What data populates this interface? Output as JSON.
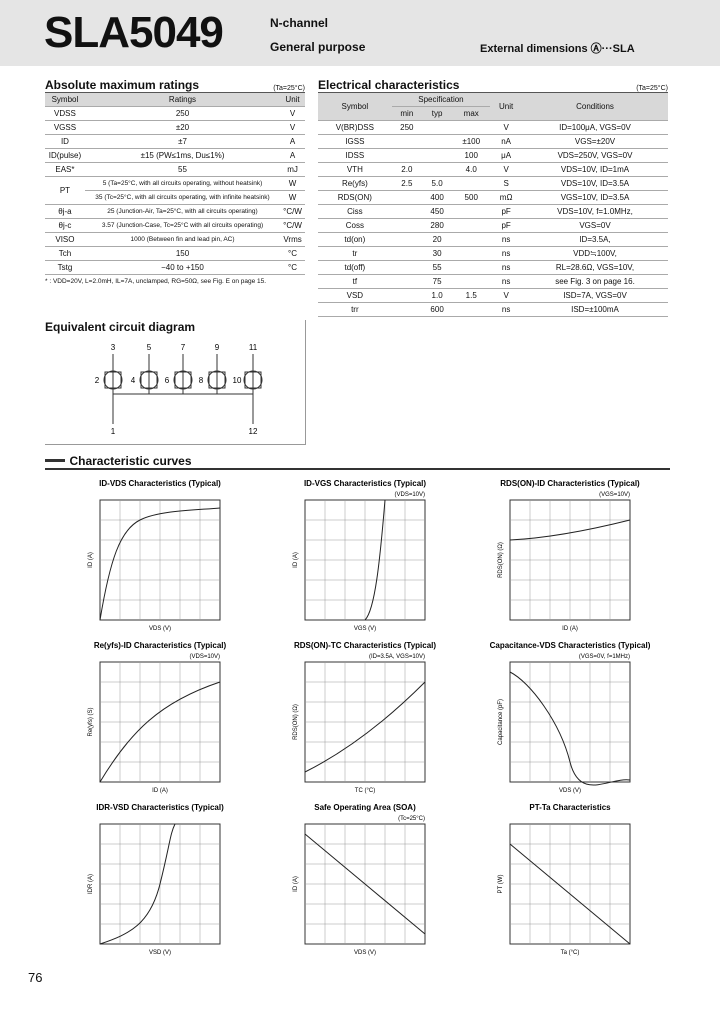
{
  "header": {
    "part": "SLA5049",
    "line1": "N-channel",
    "line2": "General purpose",
    "external": "External dimensions Ⓐ···SLA"
  },
  "abs_max": {
    "title": "Absolute maximum ratings",
    "condition": "(Ta=25°C)",
    "headers": [
      "Symbol",
      "Ratings",
      "Unit"
    ],
    "rows": [
      [
        "VDSS",
        "250",
        "V"
      ],
      [
        "VGSS",
        "±20",
        "V"
      ],
      [
        "ID",
        "±7",
        "A"
      ],
      [
        "ID(pulse)",
        "±15 (PW≤1ms, Du≤1%)",
        "A"
      ],
      [
        "EAS*",
        "55",
        "mJ"
      ],
      [
        "PT",
        "5 (Ta=25°C, with all circuits operating, without heatsink)",
        "W"
      ],
      [
        "35 (Tc=25°C, with all circuits operating, with infinite heatsink)",
        "W"
      ],
      [
        "θj-a",
        "25 (Junction-Air, Ta=25°C, with all circuits operating)",
        "°C/W"
      ],
      [
        "θj-c",
        "3.57 (Junction-Case, Tc=25°C with all circuits operating)",
        "°C/W"
      ],
      [
        "VISO",
        "1000 (Between fin and lead pin, AC)",
        "Vrms"
      ],
      [
        "Tch",
        "150",
        "°C"
      ],
      [
        "Tstg",
        "−40 to +150",
        "°C"
      ]
    ],
    "footnote": "* : VDD=20V, L=2.0mH, IL=7A, unclamped, RG=50Ω, see Fig. E on page 15."
  },
  "elec": {
    "title": "Electrical characteristics",
    "condition": "(Ta=25°C)",
    "headers": {
      "symbol": "Symbol",
      "spec": "Specification",
      "min": "min",
      "typ": "typ",
      "max": "max",
      "unit": "Unit",
      "conditions": "Conditions"
    },
    "rows": [
      {
        "symbol": "V(BR)DSS",
        "min": "250",
        "unit": "V",
        "conditions": "ID=100μA, VGS=0V"
      },
      {
        "symbol": "IGSS",
        "max": "±100",
        "unit": "nA",
        "conditions": "VGS=±20V"
      },
      {
        "symbol": "IDSS",
        "max": "100",
        "unit": "μA",
        "conditions": "VDS=250V, VGS=0V"
      },
      {
        "symbol": "VTH",
        "min": "2.0",
        "max": "4.0",
        "unit": "V",
        "conditions": "VDS=10V, ID=1mA"
      },
      {
        "symbol": "Re(yfs)",
        "min": "2.5",
        "typ": "5.0",
        "unit": "S",
        "conditions": "VDS=10V, ID=3.5A"
      },
      {
        "symbol": "RDS(ON)",
        "typ": "400",
        "max": "500",
        "unit": "mΩ",
        "conditions": "VGS=10V, ID=3.5A"
      },
      {
        "symbol": "Ciss",
        "typ": "450",
        "unit": "pF",
        "conditions": "VDS=10V, f=1.0MHz,"
      },
      {
        "symbol": "Coss",
        "typ": "280",
        "unit": "pF",
        "conditions": "VGS=0V"
      },
      {
        "symbol": "td(on)",
        "typ": "20",
        "unit": "ns",
        "conditions": "ID=3.5A,"
      },
      {
        "symbol": "tr",
        "typ": "30",
        "unit": "ns",
        "conditions": "VDD≒100V,"
      },
      {
        "symbol": "td(off)",
        "typ": "55",
        "unit": "ns",
        "conditions": "RL=28.6Ω, VGS=10V,"
      },
      {
        "symbol": "tf",
        "typ": "75",
        "unit": "ns",
        "conditions": "see Fig. 3 on page 16."
      },
      {
        "symbol": "VSD",
        "typ": "1.0",
        "max": "1.5",
        "unit": "V",
        "conditions": "ISD=7A, VGS=0V"
      },
      {
        "symbol": "trr",
        "typ": "600",
        "unit": "ns",
        "conditions": "ISD=±100mA"
      }
    ]
  },
  "circuit": {
    "title": "Equivalent circuit diagram",
    "top_pins": [
      "3",
      "5",
      "7",
      "9",
      "11"
    ],
    "gate_pins": [
      "2",
      "4",
      "6",
      "8",
      "10"
    ],
    "bottom_pins": [
      "1",
      "12"
    ]
  },
  "curves": {
    "title": "Characteristic curves",
    "panels": [
      {
        "title": "ID-VDS Characteristics (Typical)",
        "x_label": "VDS (V)",
        "y_label": "ID (A)"
      },
      {
        "title": "ID-VGS Characteristics (Typical)",
        "x_label": "VGS (V)",
        "y_label": "ID (A)",
        "note": "(VDS=10V)"
      },
      {
        "title": "RDS(ON)-ID Characteristics (Typical)",
        "x_label": "ID (A)",
        "y_label": "RDS(ON) (Ω)",
        "note": "(VGS=10V)"
      },
      {
        "title": "Re(yfs)-ID Characteristics (Typical)",
        "x_label": "ID (A)",
        "y_label": "Re(yfs) (S)",
        "note": "(VDS=10V)"
      },
      {
        "title": "RDS(ON)-TC Characteristics (Typical)",
        "x_label": "TC (°C)",
        "y_label": "RDS(ON) (Ω)",
        "note": "(ID=3.5A, VGS=10V)"
      },
      {
        "title": "Capacitance-VDS Characteristics (Typical)",
        "x_label": "VDS (V)",
        "y_label": "Capacitance (pF)",
        "note": "(VGS=0V, f=1MHz)"
      },
      {
        "title": "IDR-VSD Characteristics (Typical)",
        "x_label": "VSD (V)",
        "y_label": "IDR (A)"
      },
      {
        "title": "Safe Operating Area (SOA)",
        "x_label": "VDS (V)",
        "y_label": "ID (A)",
        "note": "(Tc=25°C)"
      },
      {
        "title": "PT-Ta Characteristics",
        "x_label": "Ta (°C)",
        "y_label": "PT (W)"
      }
    ]
  },
  "page_number": "76"
}
